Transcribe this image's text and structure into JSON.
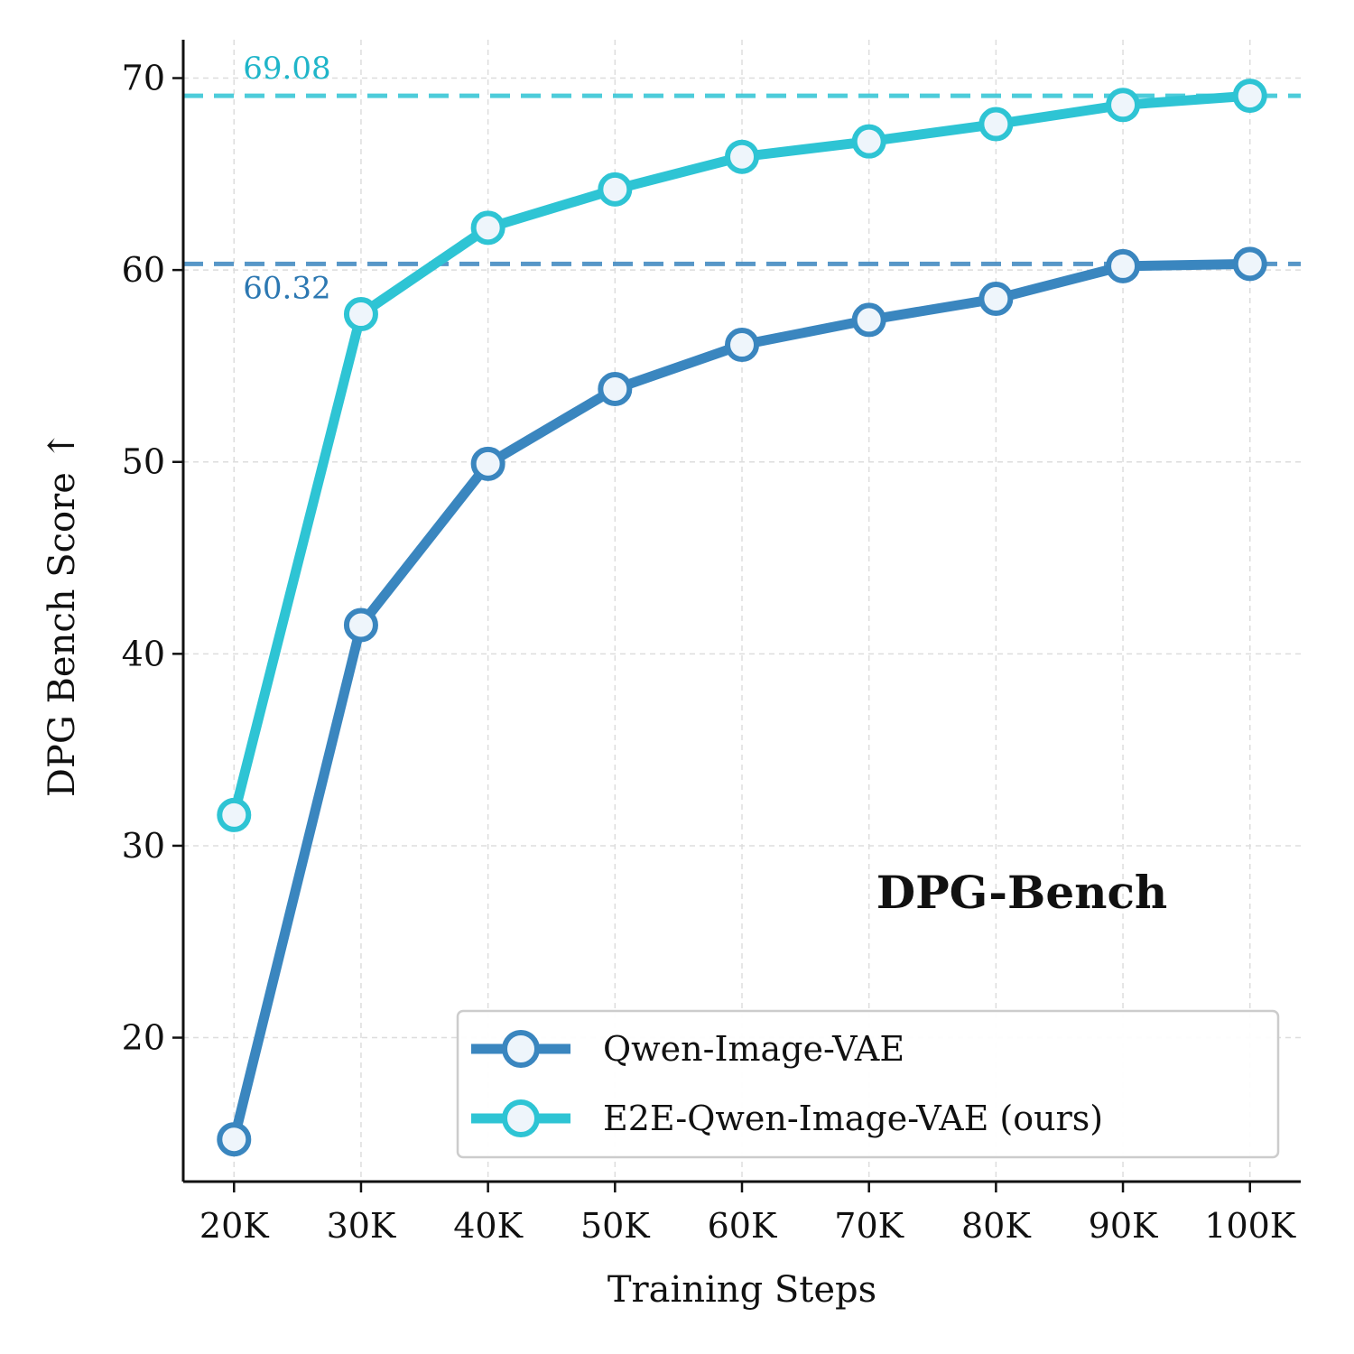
{
  "chart_data": {
    "type": "line",
    "title": "",
    "inplot_title": "DPG-Bench",
    "xlabel": "Training Steps",
    "ylabel": "DPG Bench Score ↑",
    "categories": [
      "20K",
      "30K",
      "40K",
      "50K",
      "60K",
      "70K",
      "80K",
      "90K",
      "100K"
    ],
    "x": [
      20000,
      30000,
      40000,
      50000,
      60000,
      70000,
      80000,
      90000,
      100000
    ],
    "xlim": [
      16000,
      104000
    ],
    "ylim": [
      12.5,
      72
    ],
    "yticks": [
      20,
      30,
      40,
      50,
      60,
      70
    ],
    "grid": true,
    "legend_position": "bottom-right",
    "series": [
      {
        "name": "Qwen-Image-VAE",
        "color": "#3a86bf",
        "values": [
          14.7,
          41.5,
          49.9,
          53.8,
          56.1,
          57.4,
          58.5,
          60.2,
          60.32
        ]
      },
      {
        "name": "E2E-Qwen-Image-VAE (ours)",
        "color": "#2ec4d4",
        "values": [
          31.6,
          57.7,
          62.2,
          64.2,
          65.9,
          66.7,
          67.6,
          68.6,
          69.08
        ]
      }
    ],
    "reference_lines": [
      {
        "value": 69.08,
        "label": "69.08",
        "color": "#2ec4d4",
        "text_color": "#1fb5c9"
      },
      {
        "value": 60.32,
        "label": "60.32",
        "color": "#3a86bf",
        "text_color": "#2c78b2"
      }
    ]
  }
}
